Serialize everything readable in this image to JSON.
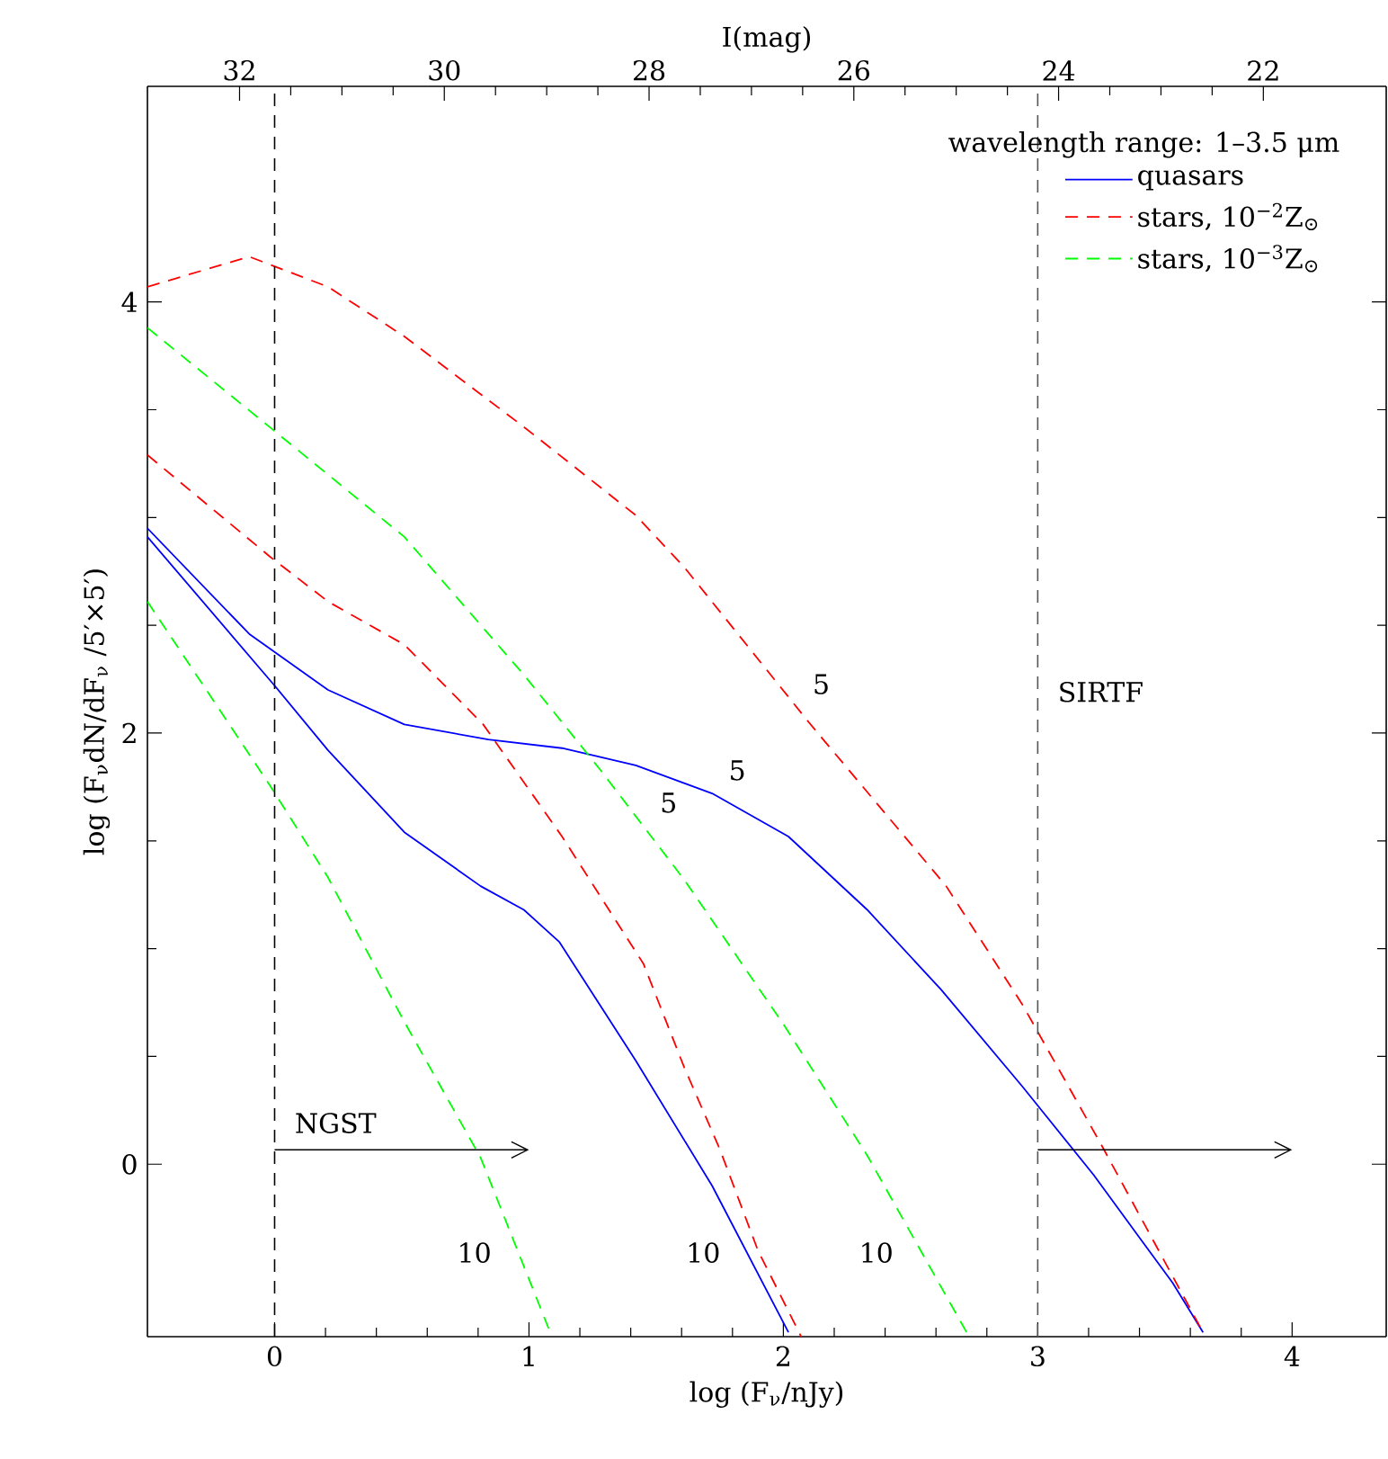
{
  "chart_data": {
    "type": "line",
    "xlabel": "log (F$_{ν}$/nJy)",
    "ylabel": "log (F$_{ν}$dN/dF$_{ν}$ /5′×5′)",
    "x2label": "I(mag)",
    "legend_title": "wavelength range:   1–3.5 μm",
    "xlim": [
      -0.5,
      4.37
    ],
    "xticks": [
      0,
      1,
      2,
      3,
      4
    ],
    "ylim": [
      -0.8,
      5
    ],
    "yticks": [
      0,
      2,
      4
    ],
    "x2lim": [
      32.9,
      20.8
    ],
    "x2ticks": [
      32,
      30,
      28,
      26,
      24,
      22
    ],
    "legend": "top right",
    "grid": false,
    "marker": "none",
    "series": [
      {
        "name": "quasars",
        "color": "#0000ff",
        "line_style": "solid",
        "x": [
          -0.5,
          -0.1,
          0.21,
          0.51,
          0.84,
          1.13,
          1.42,
          1.72,
          2.02,
          2.33,
          2.62,
          2.94,
          3.22,
          3.53,
          3.65
        ],
        "values": [
          2.95,
          2.46,
          2.2,
          2.04,
          1.97,
          1.93,
          1.85,
          1.72,
          1.52,
          1.18,
          0.81,
          0.36,
          -0.05,
          -0.55,
          -0.78
        ]
      },
      {
        "color": "#0000ff",
        "line_style": "solid",
        "x": [
          -0.5,
          0.0,
          0.21,
          0.51,
          0.81,
          0.98,
          1.12,
          1.42,
          1.72,
          2.02
        ],
        "values": [
          2.91,
          2.22,
          1.92,
          1.54,
          1.29,
          1.18,
          1.03,
          0.48,
          -0.1,
          -0.78
        ]
      },
      {
        "name": "stars, 10$^{−2}$Z$_{⊙}$",
        "color": "#ff0000",
        "line_style": "dashed",
        "x": [
          -0.5,
          -0.1,
          0.21,
          0.51,
          0.98,
          1.42,
          1.61,
          2.1,
          2.64,
          2.94,
          3.25,
          3.65
        ],
        "values": [
          4.07,
          4.21,
          4.07,
          3.84,
          3.42,
          3.01,
          2.77,
          2.05,
          1.29,
          0.74,
          0.09,
          -0.78
        ]
      },
      {
        "color": "#ff0000",
        "line_style": "dashed",
        "x": [
          -0.5,
          -0.02,
          0.21,
          0.51,
          0.82,
          1.13,
          1.45,
          1.61,
          1.75,
          1.9,
          2.07
        ],
        "values": [
          3.29,
          2.82,
          2.61,
          2.41,
          2.04,
          1.52,
          0.93,
          0.45,
          0.07,
          -0.4,
          -0.8
        ]
      },
      {
        "name": "stars, 10$^{−3}$Z$_{⊙}$",
        "color": "#00ff00",
        "line_style": "dashed",
        "x": [
          -0.5,
          -0.02,
          0.51,
          0.98,
          1.28,
          1.61,
          2.0,
          2.33,
          2.73
        ],
        "values": [
          3.88,
          3.42,
          2.91,
          2.27,
          1.83,
          1.32,
          0.65,
          0.04,
          -0.8
        ]
      },
      {
        "color": "#00ff00",
        "line_style": "dashed",
        "x": [
          -0.5,
          -0.02,
          0.21,
          0.51,
          0.81,
          1.09
        ],
        "values": [
          2.61,
          1.76,
          1.33,
          0.66,
          0.03,
          -0.8
        ]
      }
    ],
    "ref_lines": [
      {
        "axis": "x",
        "value": 0,
        "color": "#000000",
        "line_style": "dashed",
        "label": "NGST"
      },
      {
        "axis": "x",
        "value": 3,
        "color": "#555555",
        "line_style": "dashed",
        "label": "SIRTF"
      }
    ],
    "annotations": [
      {
        "text": "5",
        "x": 1.45,
        "y": 1.57
      },
      {
        "text": "5",
        "x": 1.72,
        "y": 1.72
      },
      {
        "text": "5",
        "x": 2.05,
        "y": 2.12
      },
      {
        "text": "10",
        "x": 0.96,
        "y": -0.41
      },
      {
        "text": "10",
        "x": 1.86,
        "y": -0.41
      },
      {
        "text": "10",
        "x": 2.54,
        "y": -0.41
      }
    ]
  }
}
